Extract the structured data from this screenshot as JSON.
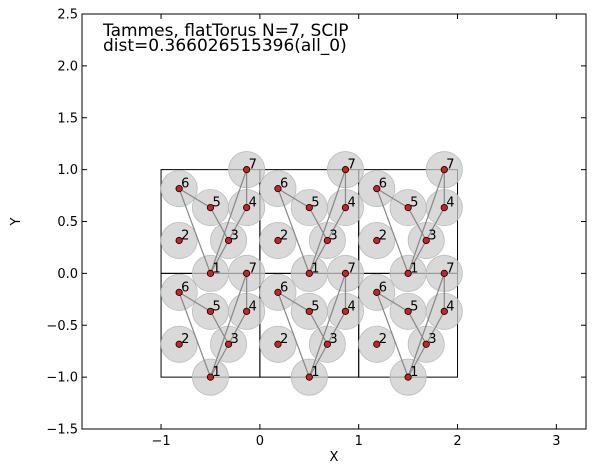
{
  "chart_data": {
    "type": "scatter",
    "title_lines": [
      "Tammes, flatTorus N=7, SCIP",
      "dist=0.366026515396(all_0)"
    ],
    "xlabel": "X",
    "ylabel": "Y",
    "xlim": [
      -1.8,
      3.3
    ],
    "ylim": [
      -1.5,
      2.5
    ],
    "xticks": [
      {
        "value": -1,
        "label": "−1"
      },
      {
        "value": 0,
        "label": "0"
      },
      {
        "value": 1,
        "label": "1"
      },
      {
        "value": 2,
        "label": "2"
      },
      {
        "value": 3,
        "label": "3"
      }
    ],
    "yticks": [
      {
        "value": -1.5,
        "label": "−1.5"
      },
      {
        "value": -1.0,
        "label": "−1.0"
      },
      {
        "value": -0.5,
        "label": "−0.5"
      },
      {
        "value": 0.0,
        "label": "0.0"
      },
      {
        "value": 0.5,
        "label": "0.5"
      },
      {
        "value": 1.0,
        "label": "1.0"
      },
      {
        "value": 1.5,
        "label": "1.5"
      },
      {
        "value": 2.0,
        "label": "2.0"
      },
      {
        "value": 2.5,
        "label": "2.5"
      }
    ],
    "cells": [
      [
        -1,
        -1
      ],
      [
        0,
        -1
      ],
      [
        1,
        -1
      ],
      [
        -1,
        0
      ],
      [
        0,
        0
      ],
      [
        1,
        0
      ]
    ],
    "points": [
      {
        "label": "1",
        "x": 0.5,
        "y": 0.0
      },
      {
        "label": "2",
        "x": 0.183,
        "y": 0.317
      },
      {
        "label": "3",
        "x": 0.683,
        "y": 0.317
      },
      {
        "label": "4",
        "x": 0.866,
        "y": 0.634
      },
      {
        "label": "5",
        "x": 0.5,
        "y": 0.634
      },
      {
        "label": "6",
        "x": 0.183,
        "y": 0.817
      },
      {
        "label": "7",
        "x": 0.866,
        "y": 1.0
      }
    ],
    "edges": [
      [
        "1",
        "3"
      ],
      [
        "3",
        "5"
      ],
      [
        "3",
        "4"
      ],
      [
        "5",
        "6"
      ],
      [
        "4",
        "7"
      ],
      [
        "1",
        "7"
      ],
      [
        "1",
        "6"
      ]
    ],
    "point_fill": "#cc2222",
    "disc_fill": "#cccccc",
    "disc_radius": 0.183,
    "edge_color": "#888888"
  }
}
